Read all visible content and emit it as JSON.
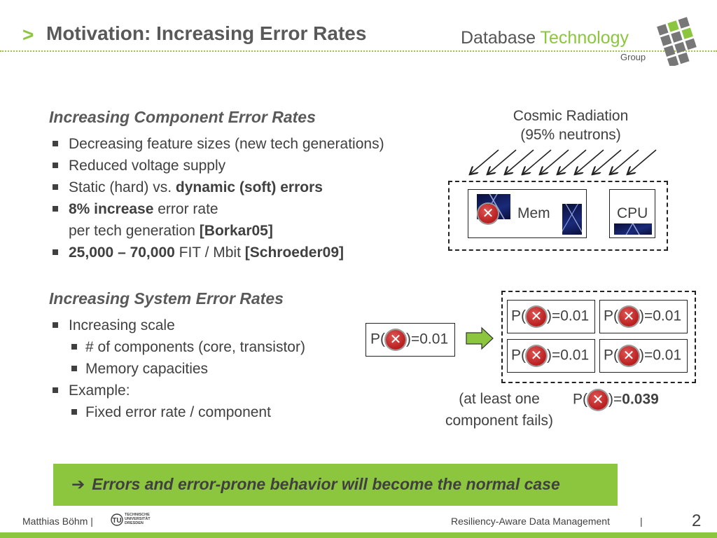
{
  "header": {
    "arrow": ">",
    "title": "Motivation: Increasing Error Rates",
    "logo_database": "Database",
    "logo_technology": "Technology",
    "logo_group": "Group"
  },
  "section1": {
    "heading": "Increasing Component Error Rates",
    "b1": "Decreasing feature sizes (new tech generations)",
    "b2": "Reduced voltage supply",
    "b3_plain": "Static (hard) vs. ",
    "b3_bold": "dynamic (soft) errors",
    "b4_bold": "8% increase",
    "b4_plain": " error rate",
    "b4_cont_plain": "per tech generation  ",
    "b4_cont_bold": "[Borkar05]",
    "b5_bold": "25,000 – 70,000",
    "b5_plain": " FIT / Mbit ",
    "b5_ref": "[Schroeder09]"
  },
  "section2": {
    "heading": "Increasing System Error Rates",
    "b1": "Increasing scale",
    "b1_sub1": "# of components (core, transistor)",
    "b1_sub2": "Memory capacities",
    "b2": "Example:",
    "b2_sub1": "Fixed error rate / component"
  },
  "radiation": {
    "line1": "Cosmic Radiation",
    "line2": "(95% neutrons)",
    "mem_label": "Mem",
    "cpu_label": "CPU"
  },
  "probability": {
    "p_open": "P(",
    "single_value": ")=0.01",
    "grid_value": ")=0.01",
    "note_line1": "(at least one",
    "note_line2": "component fails)",
    "result_close": ")=",
    "result_value": "0.039"
  },
  "conclusion": {
    "arrow": "➔",
    "text": "Errors and error-prone behavior will become the normal case"
  },
  "footer": {
    "author": "Matthias Böhm",
    "separator": "|",
    "uni_line1": "TECHNISCHE",
    "uni_line2": "UNIVERSITÄT",
    "uni_line3": "DRESDEN",
    "course": "Resiliency-Aware Data Management",
    "separator2": "|",
    "page": "2"
  },
  "colors": {
    "accent_green": "#8cc63f",
    "error_red": "#c62828"
  }
}
